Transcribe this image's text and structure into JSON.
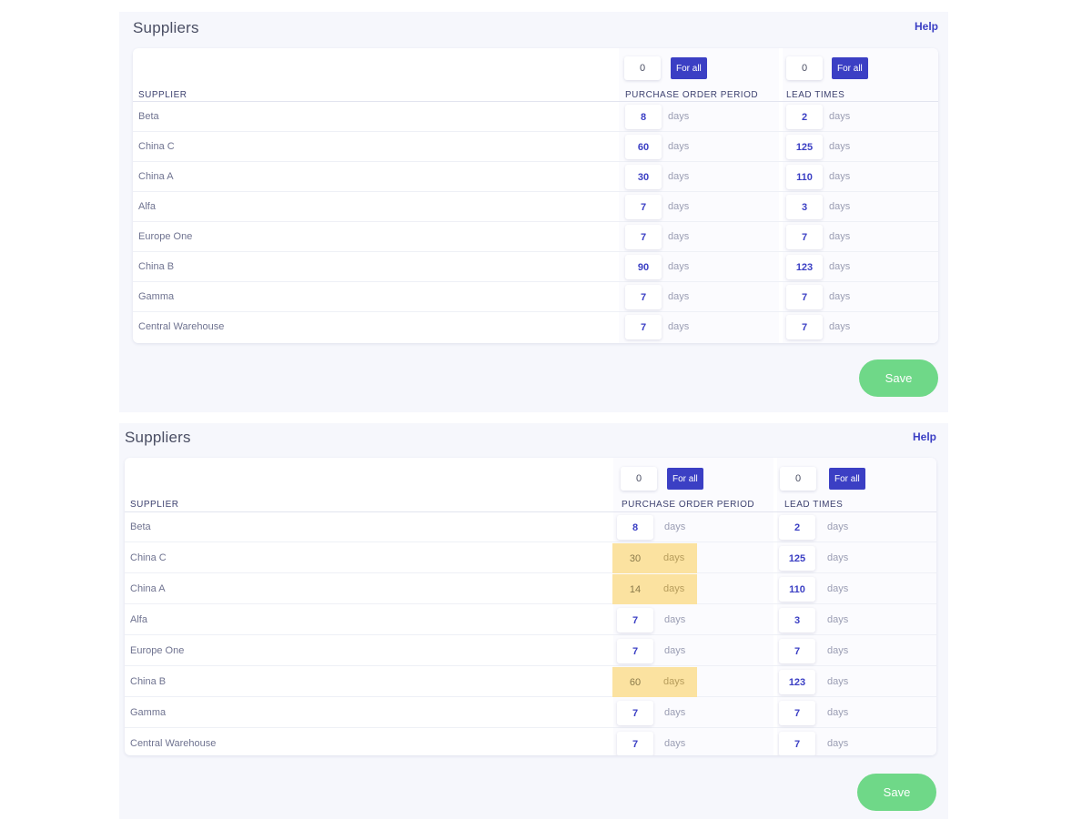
{
  "panels": [
    {
      "title": "Suppliers",
      "help": "Help",
      "columns": {
        "supplier": "SUPPLIER",
        "purchase_order_period": "PURCHASE ORDER PERIOD",
        "lead_times": "LEAD TIMES"
      },
      "bulk": {
        "po_value": "0",
        "lt_value": "0",
        "for_all_label": "For all"
      },
      "unit": "days",
      "rows": [
        {
          "name": "Beta",
          "po": "8",
          "lt": "2",
          "po_changed": false
        },
        {
          "name": "China C",
          "po": "60",
          "lt": "125",
          "po_changed": false
        },
        {
          "name": "China A",
          "po": "30",
          "lt": "110",
          "po_changed": false
        },
        {
          "name": "Alfa",
          "po": "7",
          "lt": "3",
          "po_changed": false
        },
        {
          "name": "Europe One",
          "po": "7",
          "lt": "7",
          "po_changed": false
        },
        {
          "name": "China B",
          "po": "90",
          "lt": "123",
          "po_changed": false
        },
        {
          "name": "Gamma",
          "po": "7",
          "lt": "7",
          "po_changed": false
        },
        {
          "name": "Central Warehouse",
          "po": "7",
          "lt": "7",
          "po_changed": false
        }
      ],
      "save_label": "Save"
    },
    {
      "title": "Suppliers",
      "help": "Help",
      "columns": {
        "supplier": "SUPPLIER",
        "purchase_order_period": "PURCHASE ORDER PERIOD",
        "lead_times": "LEAD TIMES"
      },
      "bulk": {
        "po_value": "0",
        "lt_value": "0",
        "for_all_label": "For all"
      },
      "unit": "days",
      "rows": [
        {
          "name": "Beta",
          "po": "8",
          "lt": "2",
          "po_changed": false
        },
        {
          "name": "China C",
          "po": "30",
          "lt": "125",
          "po_changed": true
        },
        {
          "name": "China A",
          "po": "14",
          "lt": "110",
          "po_changed": true
        },
        {
          "name": "Alfa",
          "po": "7",
          "lt": "3",
          "po_changed": false
        },
        {
          "name": "Europe One",
          "po": "7",
          "lt": "7",
          "po_changed": false
        },
        {
          "name": "China B",
          "po": "60",
          "lt": "123",
          "po_changed": true
        },
        {
          "name": "Gamma",
          "po": "7",
          "lt": "7",
          "po_changed": false
        },
        {
          "name": "Central Warehouse",
          "po": "7",
          "lt": "7",
          "po_changed": false
        }
      ],
      "save_label": "Save"
    }
  ],
  "colors": {
    "accent": "#3b3fc4",
    "save": "#6fd888",
    "changed_highlight": "#fbe2a0"
  }
}
